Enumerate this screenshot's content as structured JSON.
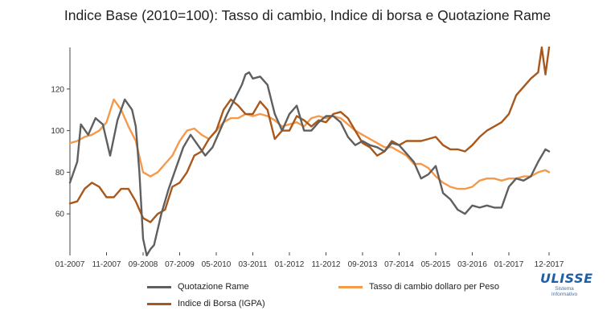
{
  "title": "Indice Base (2010=100): Tasso di cambio, Indice di borsa e Quotazione Rame",
  "logo": {
    "name": "ULISSE",
    "line1": "Sistema",
    "line2": "Informativo"
  },
  "chart_data": {
    "type": "line",
    "title": "Indice Base (2010=100): Tasso di cambio, Indice di borsa e Quotazione Rame",
    "x_ticks": [
      "01-2007",
      "11-2007",
      "09-2008",
      "07-2009",
      "05-2010",
      "03-2011",
      "01-2012",
      "11-2012",
      "09-2013",
      "07-2014",
      "05-2015",
      "03-2016",
      "01-2017",
      "12-2017"
    ],
    "y_ticks": [
      "60",
      "80",
      "100",
      "120"
    ],
    "xlim": [
      "01-2007",
      "12-2017"
    ],
    "ylim": [
      40,
      140
    ],
    "legend": "bottom",
    "grid": false,
    "series": [
      {
        "name": "Quotazione Rame",
        "color": "#5f5f5f",
        "x": [
          "01-2007",
          "03-2007",
          "04-2007",
          "06-2007",
          "08-2007",
          "10-2007",
          "12-2007",
          "02-2008",
          "04-2008",
          "06-2008",
          "07-2008",
          "08-2008",
          "09-2008",
          "10-2008",
          "11-2008",
          "12-2008",
          "02-2009",
          "04-2009",
          "06-2009",
          "08-2009",
          "10-2009",
          "12-2009",
          "02-2010",
          "04-2010",
          "06-2010",
          "08-2010",
          "10-2010",
          "12-2010",
          "01-2011",
          "02-2011",
          "03-2011",
          "05-2011",
          "07-2011",
          "09-2011",
          "11-2011",
          "01-2012",
          "03-2012",
          "05-2012",
          "07-2012",
          "09-2012",
          "11-2012",
          "01-2013",
          "03-2013",
          "05-2013",
          "07-2013",
          "09-2013",
          "11-2013",
          "01-2014",
          "03-2014",
          "05-2014",
          "07-2014",
          "09-2014",
          "11-2014",
          "01-2015",
          "03-2015",
          "05-2015",
          "07-2015",
          "09-2015",
          "11-2015",
          "01-2016",
          "03-2016",
          "05-2016",
          "07-2016",
          "09-2016",
          "11-2016",
          "01-2017",
          "03-2017",
          "05-2017",
          "07-2017",
          "09-2017",
          "11-2017",
          "12-2017"
        ],
        "values": [
          75,
          85,
          103,
          98,
          106,
          103,
          88,
          105,
          115,
          110,
          102,
          80,
          48,
          40,
          43,
          45,
          60,
          72,
          82,
          92,
          98,
          93,
          88,
          92,
          100,
          108,
          115,
          122,
          127,
          128,
          125,
          126,
          122,
          108,
          100,
          108,
          112,
          100,
          100,
          104,
          107,
          107,
          104,
          97,
          93,
          95,
          93,
          92,
          90,
          94,
          93,
          89,
          85,
          77,
          79,
          83,
          70,
          67,
          62,
          60,
          64,
          63,
          64,
          63,
          63,
          73,
          77,
          76,
          78,
          85,
          91,
          90
        ]
      },
      {
        "name": "Indice di Borsa (IGPA)",
        "color": "#a8581c",
        "x": [
          "01-2007",
          "03-2007",
          "05-2007",
          "07-2007",
          "09-2007",
          "11-2007",
          "01-2008",
          "03-2008",
          "05-2008",
          "07-2008",
          "09-2008",
          "11-2008",
          "01-2009",
          "03-2009",
          "05-2009",
          "07-2009",
          "09-2009",
          "11-2009",
          "01-2010",
          "03-2010",
          "05-2010",
          "07-2010",
          "09-2010",
          "11-2010",
          "01-2011",
          "03-2011",
          "05-2011",
          "07-2011",
          "09-2011",
          "11-2011",
          "01-2012",
          "03-2012",
          "05-2012",
          "07-2012",
          "09-2012",
          "11-2012",
          "01-2013",
          "03-2013",
          "05-2013",
          "07-2013",
          "09-2013",
          "11-2013",
          "01-2014",
          "03-2014",
          "05-2014",
          "07-2014",
          "09-2014",
          "11-2014",
          "01-2015",
          "03-2015",
          "05-2015",
          "07-2015",
          "09-2015",
          "11-2015",
          "01-2016",
          "03-2016",
          "05-2016",
          "07-2016",
          "09-2016",
          "11-2016",
          "01-2017",
          "03-2017",
          "05-2017",
          "07-2017",
          "09-2017",
          "10-2017",
          "11-2017",
          "12-2017"
        ],
        "values": [
          65,
          66,
          72,
          75,
          73,
          68,
          68,
          72,
          72,
          66,
          58,
          56,
          60,
          62,
          73,
          75,
          80,
          88,
          90,
          96,
          100,
          110,
          115,
          112,
          108,
          108,
          114,
          110,
          96,
          100,
          100,
          107,
          105,
          102,
          105,
          104,
          108,
          109,
          106,
          100,
          94,
          92,
          88,
          90,
          95,
          93,
          95,
          95,
          95,
          96,
          97,
          93,
          91,
          91,
          90,
          93,
          97,
          100,
          102,
          104,
          108,
          117,
          121,
          125,
          128,
          140,
          127,
          140
        ]
      },
      {
        "name": "Tasso di cambio dollaro per Peso",
        "color": "#f5994b",
        "x": [
          "01-2007",
          "03-2007",
          "05-2007",
          "07-2007",
          "09-2007",
          "11-2007",
          "01-2008",
          "03-2008",
          "05-2008",
          "07-2008",
          "09-2008",
          "11-2008",
          "01-2009",
          "03-2009",
          "05-2009",
          "07-2009",
          "09-2009",
          "11-2009",
          "01-2010",
          "03-2010",
          "05-2010",
          "07-2010",
          "09-2010",
          "11-2010",
          "01-2011",
          "03-2011",
          "05-2011",
          "07-2011",
          "09-2011",
          "11-2011",
          "01-2012",
          "03-2012",
          "05-2012",
          "07-2012",
          "09-2012",
          "11-2012",
          "01-2013",
          "03-2013",
          "05-2013",
          "07-2013",
          "09-2013",
          "11-2013",
          "01-2014",
          "03-2014",
          "05-2014",
          "07-2014",
          "09-2014",
          "11-2014",
          "01-2015",
          "03-2015",
          "05-2015",
          "07-2015",
          "09-2015",
          "11-2015",
          "01-2016",
          "03-2016",
          "05-2016",
          "07-2016",
          "09-2016",
          "11-2016",
          "01-2017",
          "03-2017",
          "05-2017",
          "07-2017",
          "09-2017",
          "11-2017",
          "12-2017"
        ],
        "values": [
          94,
          95,
          97,
          98,
          100,
          104,
          115,
          110,
          102,
          95,
          80,
          78,
          80,
          84,
          88,
          95,
          100,
          101,
          98,
          96,
          100,
          104,
          106,
          106,
          108,
          107,
          108,
          107,
          105,
          102,
          103,
          104,
          102,
          106,
          107,
          106,
          107,
          106,
          103,
          100,
          98,
          96,
          94,
          92,
          92,
          90,
          88,
          84,
          84,
          82,
          78,
          75,
          73,
          72,
          72,
          73,
          76,
          77,
          77,
          76,
          77,
          77,
          78,
          78,
          80,
          81,
          80
        ]
      }
    ]
  }
}
